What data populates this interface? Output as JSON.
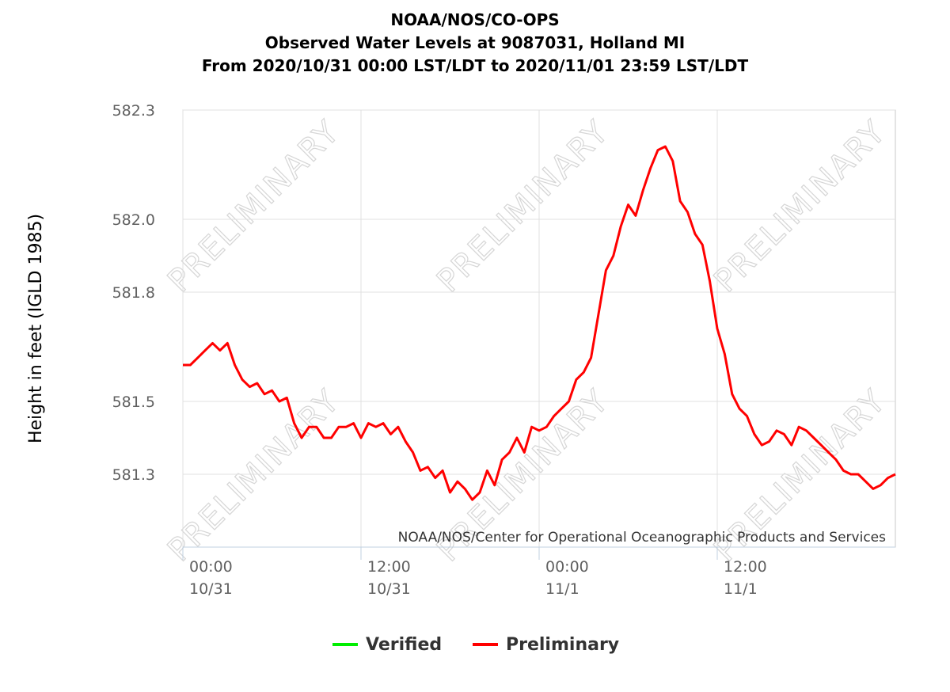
{
  "chart_data": {
    "type": "line",
    "title": [
      "NOAA/NOS/CO-OPS",
      "Observed Water Levels at 9087031, Holland MI",
      "From 2020/10/31 00:00 LST/LDT to 2020/11/01 23:59 LST/LDT"
    ],
    "ylabel": "Height in feet (IGLD 1985)",
    "xlabel": "",
    "ylim": [
      581.1,
      582.3
    ],
    "y_ticks": [
      582.3,
      582.0,
      581.8,
      581.5,
      581.3
    ],
    "y_tick_labels": [
      "582.3",
      "582.0",
      "581.8",
      "581.5",
      "581.3"
    ],
    "xlim_hours": [
      0,
      48
    ],
    "x_ticks": [
      {
        "hour": 0,
        "time": "00:00",
        "date": "10/31"
      },
      {
        "hour": 12,
        "time": "12:00",
        "date": "10/31"
      },
      {
        "hour": 24,
        "time": "00:00",
        "date": "11/1"
      },
      {
        "hour": 36,
        "time": "12:00",
        "date": "11/1"
      }
    ],
    "grid": true,
    "watermark": "PRELIMINARY",
    "credit": "NOAA/NOS/Center for Operational Oceanographic Products and Services",
    "legend_position": "bottom-center",
    "series": [
      {
        "name": "Verified",
        "color": "#00ee00",
        "x_hours": [],
        "values": []
      },
      {
        "name": "Preliminary",
        "color": "#ff0000",
        "x_hours": [
          0,
          0.5,
          1,
          1.5,
          2,
          2.5,
          3,
          3.5,
          4,
          4.5,
          5,
          5.5,
          6,
          6.5,
          7,
          7.5,
          8,
          8.5,
          9,
          9.5,
          10,
          10.5,
          11,
          11.5,
          12,
          12.5,
          13,
          13.5,
          14,
          14.5,
          15,
          15.5,
          16,
          16.5,
          17,
          17.5,
          18,
          18.5,
          19,
          19.5,
          20,
          20.5,
          21,
          21.5,
          22,
          22.5,
          23,
          23.5,
          24,
          24.5,
          25,
          25.5,
          26,
          26.5,
          27,
          27.5,
          28,
          28.5,
          29,
          29.5,
          30,
          30.5,
          31,
          31.5,
          32,
          32.5,
          33,
          33.5,
          34,
          34.5,
          35,
          35.5,
          36,
          36.5,
          37,
          37.5,
          38,
          38.5,
          39,
          39.5,
          40,
          40.5,
          41,
          41.5,
          42,
          42.5,
          43,
          43.5,
          44,
          44.5,
          45,
          45.5,
          46,
          46.5,
          47,
          47.5,
          48
        ],
        "values": [
          581.6,
          581.6,
          581.62,
          581.64,
          581.66,
          581.64,
          581.66,
          581.6,
          581.56,
          581.54,
          581.55,
          581.52,
          581.53,
          581.5,
          581.51,
          581.44,
          581.4,
          581.43,
          581.43,
          581.4,
          581.4,
          581.43,
          581.43,
          581.44,
          581.4,
          581.44,
          581.43,
          581.44,
          581.41,
          581.43,
          581.39,
          581.36,
          581.31,
          581.32,
          581.29,
          581.31,
          581.25,
          581.28,
          581.26,
          581.23,
          581.25,
          581.31,
          581.27,
          581.34,
          581.36,
          581.4,
          581.36,
          581.43,
          581.42,
          581.43,
          581.46,
          581.48,
          581.5,
          581.56,
          581.58,
          581.62,
          581.74,
          581.86,
          581.9,
          581.98,
          582.04,
          582.01,
          582.08,
          582.14,
          582.19,
          582.2,
          582.16,
          582.05,
          582.02,
          581.96,
          581.93,
          581.83,
          581.7,
          581.63,
          581.52,
          581.48,
          581.46,
          581.41,
          581.38,
          581.39,
          581.42,
          581.41,
          581.38,
          581.43,
          581.42,
          581.4,
          581.38,
          581.36,
          581.34,
          581.31,
          581.3,
          581.3,
          581.28,
          581.26,
          581.27,
          581.29,
          581.3
        ]
      }
    ]
  }
}
